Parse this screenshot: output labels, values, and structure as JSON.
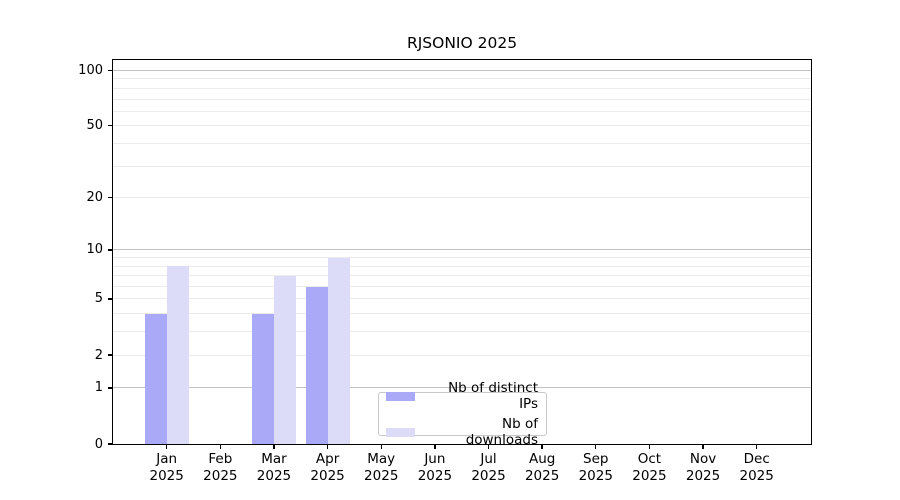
{
  "title": "RJSONIO 2025",
  "chart_data": {
    "type": "bar",
    "title": "RJSONIO 2025",
    "categories": [
      "Jan",
      "Feb",
      "Mar",
      "Apr",
      "May",
      "Jun",
      "Jul",
      "Aug",
      "Sep",
      "Oct",
      "Nov",
      "Dec"
    ],
    "category_year": "2025",
    "series": [
      {
        "name": "Nb of distinct IPs",
        "color": "#a9a9f7",
        "values": [
          4,
          0,
          4,
          6,
          0,
          0,
          0,
          0,
          0,
          0,
          0,
          0
        ]
      },
      {
        "name": "Nb of downloads",
        "color": "#dcdcf9",
        "values": [
          8,
          0,
          7,
          9,
          0,
          0,
          0,
          0,
          0,
          0,
          0,
          0
        ]
      }
    ],
    "y_scale": "log10(value+1)",
    "y_ticks": [
      0,
      1,
      2,
      5,
      10,
      20,
      50,
      100
    ],
    "ylim": [
      0,
      100
    ],
    "grid": "horizontal",
    "grid_major_color": "#c3c3c3",
    "grid_minor_color": "#ebebeb",
    "legend_position": "inside-bottom-center"
  }
}
